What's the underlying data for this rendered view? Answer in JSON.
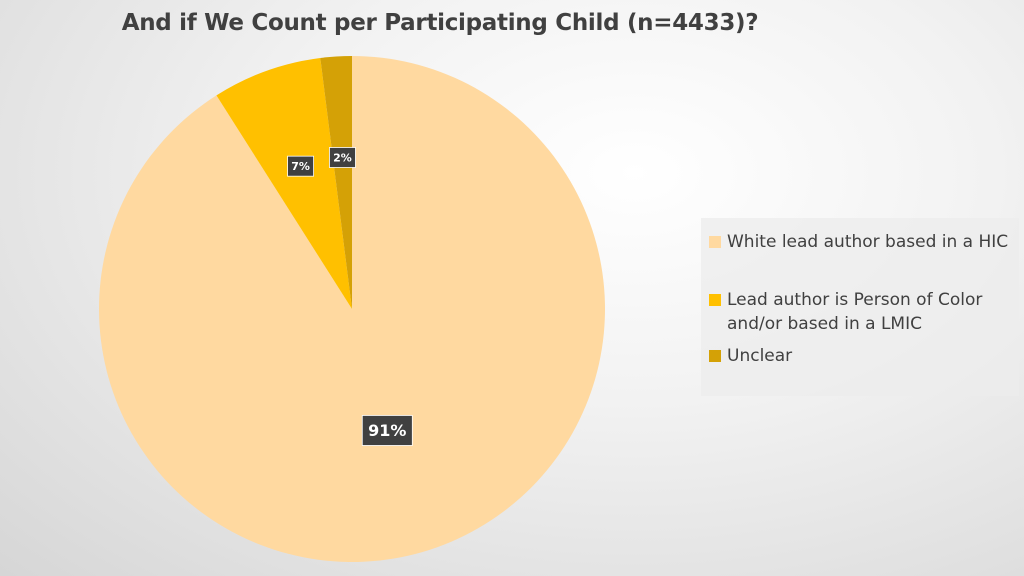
{
  "chart_data": {
    "type": "pie",
    "title": "And if We Count per Participating Child (n=4433)?",
    "slices": [
      {
        "label": "White lead author based in a HIC",
        "value": 91,
        "data_label": "91%",
        "color": "#FFD9A0"
      },
      {
        "label": "Lead author is Person of Color and/or based in a LMIC",
        "value": 7,
        "data_label": "7%",
        "color": "#FFC000"
      },
      {
        "label": "Unclear",
        "value": 2,
        "data_label": "2%",
        "color": "#D4A106"
      }
    ],
    "start_angle": "12 o'clock",
    "direction": "clockwise",
    "legend_position": "right"
  }
}
